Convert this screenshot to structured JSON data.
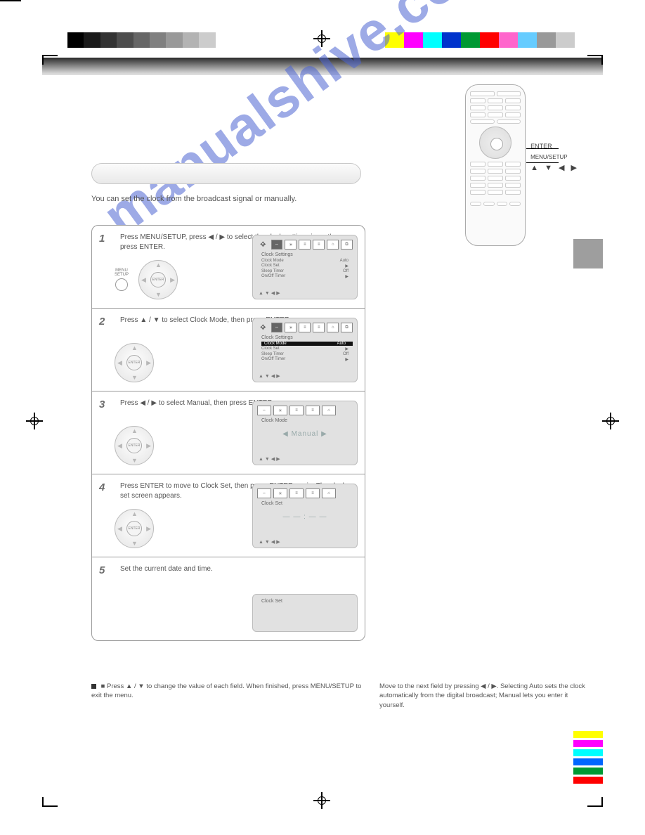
{
  "colorbars": {
    "grays": [
      "#000000",
      "#1a1a1a",
      "#333333",
      "#4d4d4d",
      "#666666",
      "#808080",
      "#999999",
      "#b3b3b3",
      "#cccccc",
      "#ffffff"
    ],
    "hues": [
      "#ffff00",
      "#ff00ff",
      "#00ffff",
      "#0033cc",
      "#009933",
      "#ff0000",
      "#ff66cc",
      "#66ccff",
      "#999999",
      "#cccccc"
    ]
  },
  "sidebars": [
    "#ffff00",
    "#ff00ff",
    "#00ffff",
    "#0066ff",
    "#009933",
    "#ff0000"
  ],
  "watermark": "manualshive.com",
  "remote": {
    "label_enter": "ENTER",
    "label_menu": "MENU/SETUP",
    "arrows": "▲ ▼ ◀ ▶"
  },
  "intro": "You can set the clock from the broadcast signal or manually.",
  "steps": [
    {
      "num": "1",
      "text": "Press MENU/SETUP, press ◀ / ▶ to select the clock settings icon, then press ENTER.",
      "show_menu_btn": true,
      "screen": {
        "type": "menu",
        "icons": [
          "⇔",
          "☀",
          "≡",
          "≡",
          "⌂",
          "⧉"
        ],
        "title": "Clock Settings",
        "lines": [
          [
            "Clock Mode",
            "Auto"
          ],
          [
            "Clock Set",
            "▶"
          ],
          [
            "Sleep Timer",
            "Off"
          ],
          [
            "On/Off Timer",
            "▶"
          ]
        ],
        "foot": "▲▼◀▶"
      }
    },
    {
      "num": "2",
      "text": "Press ▲ / ▼ to select Clock Mode, then press ENTER.",
      "screen": {
        "type": "menu",
        "icons": [
          "⇔",
          "☀",
          "≡",
          "≡",
          "⌂",
          "⧉"
        ],
        "title": "Clock Settings",
        "highlight": 0,
        "lines": [
          [
            "Clock Mode",
            "Auto"
          ],
          [
            "Clock Set",
            "▶"
          ],
          [
            "Sleep Timer",
            "Off"
          ],
          [
            "On/Off Timer",
            "▶"
          ]
        ],
        "foot": "▲▼◀▶"
      }
    },
    {
      "num": "3",
      "text": "Press ◀ / ▶ to select Manual, then press ENTER.",
      "screen": {
        "type": "clock",
        "icons": [
          "⇔",
          "☀",
          "≡",
          "≡",
          "⌂"
        ],
        "title": "Clock Mode",
        "star": "◀  Manual  ▶",
        "foot": "▲▼◀▶"
      }
    },
    {
      "num": "4",
      "text": "Press ENTER to move to Clock Set, then press ENTER again. The clock set screen appears.",
      "screen": {
        "type": "clock",
        "icons": [
          "⇔",
          "☀",
          "≡",
          "≡",
          "⌂"
        ],
        "title": "Clock Set",
        "star": "— — : — —",
        "foot": "▲▼◀▶"
      }
    },
    {
      "num": "5",
      "text": "Set the current date and time.",
      "screen": {
        "type": "small",
        "title": "Clock Set",
        "foot": ""
      }
    }
  ],
  "notes_left": "■  Press ▲ / ▼ to change the value of each field. When finished, press MENU/SETUP to exit the menu.",
  "notes_right": "Move to the next field by pressing ◀ / ▶. Selecting Auto sets the clock automatically from the digital broadcast; Manual lets you enter it yourself.",
  "menu_btn": {
    "line1": "MENU",
    "line2": "SETUP"
  },
  "enter_label": "ENTER"
}
